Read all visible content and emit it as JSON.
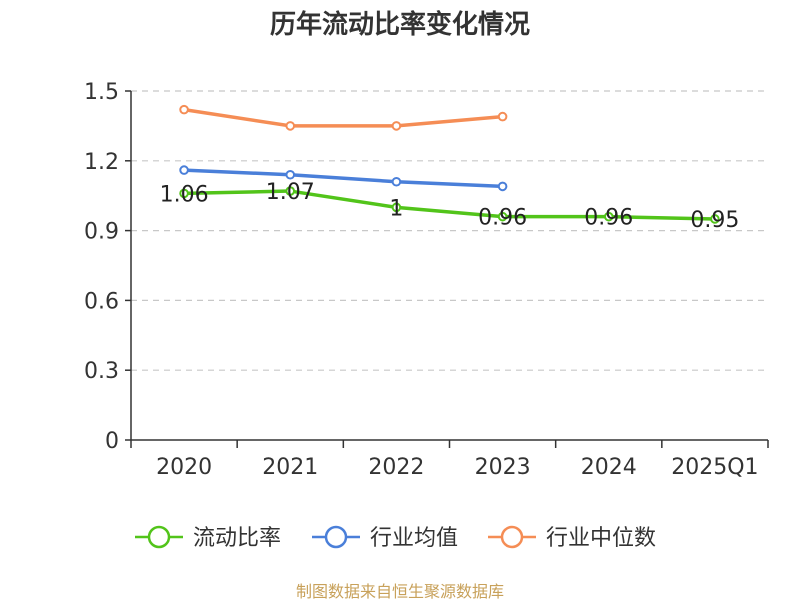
{
  "title": "历年流动比率变化情况",
  "source_note": "制图数据来自恒生聚源数据库",
  "chart_data": {
    "type": "line",
    "title": "历年流动比率变化情况",
    "categories": [
      "2020",
      "2021",
      "2022",
      "2023",
      "2024",
      "2025Q1"
    ],
    "ylim": [
      0,
      1.5
    ],
    "yticks": [
      0,
      0.3,
      0.6,
      0.9,
      1.2,
      1.5
    ],
    "ytick_labels": [
      "0",
      "0.3",
      "0.6",
      "0.9",
      "1.2",
      "1.5"
    ],
    "grid": true,
    "legend_position": "bottom",
    "series": [
      {
        "name": "流动比率",
        "color": "#52c41a",
        "values": [
          1.06,
          1.07,
          1.0,
          0.96,
          0.96,
          0.95
        ],
        "labels": [
          "1.06",
          "1.07",
          "1",
          "0.96",
          "0.96",
          "0.95"
        ],
        "show_labels": true
      },
      {
        "name": "行业均值",
        "color": "#4a7fd9",
        "values": [
          1.16,
          1.14,
          1.11,
          1.09,
          null,
          null
        ],
        "show_labels": false
      },
      {
        "name": "行业中位数",
        "color": "#f58d55",
        "values": [
          1.42,
          1.35,
          1.35,
          1.39,
          null,
          null
        ],
        "show_labels": false
      }
    ]
  }
}
